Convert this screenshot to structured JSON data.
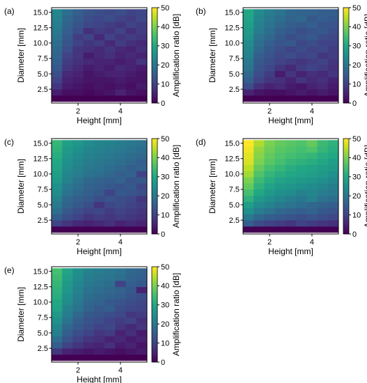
{
  "figure": {
    "colorbar_label": "Amplification ratio [dB]",
    "colorbar_ticks": [
      "0",
      "10",
      "20",
      "30",
      "40",
      "50"
    ],
    "colormap": "viridis"
  },
  "chart_data": [
    {
      "type": "heatmap",
      "panel_label": "(a)",
      "xlabel": "Height [mm]",
      "ylabel": "Diameter [mm]",
      "x_ticks": [
        "2",
        "4"
      ],
      "y_ticks": [
        "2.5",
        "5.0",
        "7.5",
        "10.0",
        "12.5",
        "15.0"
      ],
      "xlim": [
        0.75,
        5.25
      ],
      "ylim": [
        0.25,
        15.75
      ],
      "x": [
        1.0,
        1.5,
        2.0,
        2.5,
        3.0,
        3.5,
        4.0,
        4.5,
        5.0
      ],
      "y": [
        1.0,
        2.0,
        3.0,
        4.0,
        5.0,
        6.0,
        7.0,
        8.0,
        9.0,
        10.0,
        11.0,
        12.0,
        13.0,
        14.0,
        15.0
      ],
      "clim": [
        0,
        50
      ],
      "z": [
        [
          0,
          0,
          0,
          0,
          0,
          0,
          0,
          0,
          0
        ],
        [
          4,
          2,
          2,
          1,
          2,
          3,
          5,
          3,
          2
        ],
        [
          8,
          4,
          3,
          2,
          3,
          2,
          3,
          2,
          4
        ],
        [
          10,
          5,
          4,
          3,
          3,
          3,
          4,
          3,
          3
        ],
        [
          12,
          6,
          5,
          3,
          4,
          5,
          5,
          4,
          3
        ],
        [
          14,
          8,
          6,
          4,
          5,
          4,
          6,
          5,
          4
        ],
        [
          15,
          9,
          7,
          6,
          5,
          5,
          4,
          5,
          8
        ],
        [
          16,
          10,
          8,
          4,
          6,
          7,
          5,
          6,
          5
        ],
        [
          17,
          12,
          8,
          7,
          6,
          8,
          6,
          5,
          7
        ],
        [
          18,
          13,
          10,
          8,
          9,
          6,
          9,
          7,
          6
        ],
        [
          19,
          14,
          9,
          10,
          6,
          10,
          8,
          9,
          8
        ],
        [
          20,
          15,
          12,
          7,
          9,
          8,
          10,
          7,
          9
        ],
        [
          21,
          16,
          13,
          11,
          10,
          9,
          8,
          10,
          9
        ],
        [
          22,
          17,
          14,
          12,
          11,
          12,
          10,
          9,
          11
        ],
        [
          23,
          18,
          15,
          13,
          12,
          11,
          12,
          10,
          11
        ]
      ]
    },
    {
      "type": "heatmap",
      "panel_label": "(b)",
      "xlabel": "Height [mm]",
      "ylabel": "Diameter [mm]",
      "x_ticks": [
        "2",
        "4"
      ],
      "y_ticks": [
        "2.5",
        "5.0",
        "7.5",
        "10.0",
        "12.5",
        "15.0"
      ],
      "xlim": [
        0.75,
        5.25
      ],
      "ylim": [
        0.25,
        15.75
      ],
      "x": [
        1.0,
        1.5,
        2.0,
        2.5,
        3.0,
        3.5,
        4.0,
        4.5,
        5.0
      ],
      "y": [
        1.0,
        2.0,
        3.0,
        4.0,
        5.0,
        6.0,
        7.0,
        8.0,
        9.0,
        10.0,
        11.0,
        12.0,
        13.0,
        14.0,
        15.0
      ],
      "clim": [
        0,
        50
      ],
      "z": [
        [
          0,
          0,
          0,
          0,
          0,
          0,
          0,
          0,
          0
        ],
        [
          5,
          3,
          2,
          2,
          3,
          4,
          3,
          4,
          3
        ],
        [
          12,
          7,
          5,
          6,
          4,
          3,
          5,
          6,
          4
        ],
        [
          15,
          10,
          8,
          7,
          5,
          8,
          6,
          7,
          5
        ],
        [
          17,
          12,
          9,
          4,
          8,
          5,
          7,
          6,
          8
        ],
        [
          19,
          13,
          11,
          8,
          6,
          9,
          10,
          9,
          7
        ],
        [
          20,
          14,
          12,
          10,
          9,
          8,
          9,
          10,
          8
        ],
        [
          22,
          15,
          13,
          11,
          12,
          10,
          11,
          8,
          9
        ],
        [
          23,
          17,
          14,
          12,
          10,
          12,
          10,
          11,
          9
        ],
        [
          24,
          18,
          15,
          13,
          14,
          11,
          12,
          10,
          10
        ],
        [
          26,
          19,
          17,
          14,
          12,
          13,
          14,
          12,
          11
        ],
        [
          27,
          21,
          18,
          15,
          14,
          12,
          13,
          14,
          12
        ],
        [
          28,
          22,
          19,
          17,
          15,
          14,
          15,
          13,
          13
        ],
        [
          29,
          23,
          20,
          18,
          16,
          17,
          14,
          15,
          14
        ],
        [
          30,
          24,
          21,
          19,
          17,
          16,
          16,
          15,
          15
        ]
      ]
    },
    {
      "type": "heatmap",
      "panel_label": "(c)",
      "xlabel": "Height [mm]",
      "ylabel": "Diameter [mm]",
      "x_ticks": [
        "2",
        "4"
      ],
      "y_ticks": [
        "2.5",
        "5.0",
        "7.5",
        "10.0",
        "12.5",
        "15.0"
      ],
      "xlim": [
        0.75,
        5.25
      ],
      "ylim": [
        0.25,
        15.75
      ],
      "x": [
        1.0,
        1.5,
        2.0,
        2.5,
        3.0,
        3.5,
        4.0,
        4.5,
        5.0
      ],
      "y": [
        1.0,
        2.0,
        3.0,
        4.0,
        5.0,
        6.0,
        7.0,
        8.0,
        9.0,
        10.0,
        11.0,
        12.0,
        13.0,
        14.0,
        15.0
      ],
      "clim": [
        0,
        50
      ],
      "z": [
        [
          0,
          0,
          0,
          0,
          0,
          0,
          0,
          0,
          0
        ],
        [
          10,
          8,
          6,
          5,
          6,
          7,
          5,
          6,
          5
        ],
        [
          15,
          12,
          10,
          8,
          9,
          8,
          9,
          8,
          7
        ],
        [
          18,
          14,
          12,
          10,
          11,
          9,
          10,
          9,
          8
        ],
        [
          20,
          16,
          14,
          12,
          8,
          11,
          12,
          10,
          9
        ],
        [
          22,
          17,
          15,
          14,
          12,
          13,
          12,
          11,
          8
        ],
        [
          24,
          19,
          17,
          15,
          14,
          10,
          14,
          13,
          12
        ],
        [
          25,
          20,
          18,
          16,
          15,
          14,
          13,
          14,
          11
        ],
        [
          27,
          22,
          19,
          17,
          16,
          15,
          16,
          13,
          14
        ],
        [
          28,
          23,
          21,
          19,
          18,
          17,
          15,
          16,
          10
        ],
        [
          29,
          24,
          22,
          20,
          19,
          18,
          17,
          15,
          16
        ],
        [
          30,
          25,
          23,
          21,
          20,
          19,
          18,
          17,
          15
        ],
        [
          31,
          26,
          24,
          22,
          21,
          20,
          19,
          18,
          17
        ],
        [
          32,
          27,
          25,
          23,
          22,
          21,
          20,
          19,
          18
        ],
        [
          33,
          28,
          26,
          24,
          23,
          22,
          21,
          20,
          19
        ]
      ]
    },
    {
      "type": "heatmap",
      "panel_label": "(d)",
      "xlabel": "Height [mm]",
      "ylabel": "Diameter [mm]",
      "x_ticks": [
        "2",
        "4"
      ],
      "y_ticks": [
        "2.5",
        "5.0",
        "7.5",
        "10.0",
        "12.5",
        "15.0"
      ],
      "xlim": [
        0.75,
        5.25
      ],
      "ylim": [
        0.25,
        15.75
      ],
      "x": [
        1.0,
        1.5,
        2.0,
        2.5,
        3.0,
        3.5,
        4.0,
        4.5,
        5.0
      ],
      "y": [
        1.0,
        2.0,
        3.0,
        4.0,
        5.0,
        6.0,
        7.0,
        8.0,
        9.0,
        10.0,
        11.0,
        12.0,
        13.0,
        14.0,
        15.0
      ],
      "clim": [
        0,
        50
      ],
      "z": [
        [
          0,
          0,
          0,
          0,
          0,
          0,
          0,
          0,
          0
        ],
        [
          15,
          12,
          10,
          9,
          8,
          10,
          9,
          8,
          7
        ],
        [
          20,
          17,
          15,
          14,
          13,
          12,
          13,
          12,
          11
        ],
        [
          25,
          21,
          19,
          17,
          16,
          15,
          16,
          14,
          13
        ],
        [
          28,
          24,
          22,
          20,
          19,
          18,
          17,
          16,
          15
        ],
        [
          32,
          27,
          25,
          23,
          21,
          20,
          22,
          19,
          18
        ],
        [
          35,
          30,
          27,
          25,
          24,
          22,
          23,
          21,
          20
        ],
        [
          38,
          32,
          29,
          27,
          26,
          25,
          24,
          23,
          21
        ],
        [
          40,
          34,
          31,
          29,
          28,
          27,
          26,
          25,
          23
        ],
        [
          43,
          36,
          33,
          31,
          30,
          29,
          28,
          27,
          25
        ],
        [
          45,
          38,
          35,
          33,
          31,
          30,
          29,
          28,
          27
        ],
        [
          47,
          40,
          37,
          35,
          33,
          32,
          31,
          30,
          28
        ],
        [
          48,
          41,
          38,
          36,
          35,
          34,
          33,
          31,
          30
        ],
        [
          49,
          42,
          39,
          37,
          36,
          35,
          36,
          33,
          31
        ],
        [
          50,
          44,
          40,
          38,
          37,
          36,
          38,
          34,
          32
        ]
      ]
    },
    {
      "type": "heatmap",
      "panel_label": "(e)",
      "xlabel": "Height [mm]",
      "ylabel": "Diameter [mm]",
      "x_ticks": [
        "2",
        "4"
      ],
      "y_ticks": [
        "2.5",
        "5.0",
        "7.5",
        "10.0",
        "12.5",
        "15.0"
      ],
      "xlim": [
        0.75,
        5.25
      ],
      "ylim": [
        0.25,
        15.75
      ],
      "x": [
        1.0,
        1.5,
        2.0,
        2.5,
        3.0,
        3.5,
        4.0,
        4.5,
        5.0
      ],
      "y": [
        1.0,
        2.0,
        3.0,
        4.0,
        5.0,
        6.0,
        7.0,
        8.0,
        9.0,
        10.0,
        11.0,
        12.0,
        13.0,
        14.0,
        15.0
      ],
      "clim": [
        0,
        50
      ],
      "z": [
        [
          0,
          0,
          0,
          0,
          0,
          0,
          0,
          0,
          0
        ],
        [
          8,
          5,
          4,
          3,
          4,
          3,
          2,
          3,
          4
        ],
        [
          15,
          10,
          8,
          6,
          5,
          7,
          4,
          5,
          3
        ],
        [
          18,
          13,
          10,
          8,
          7,
          5,
          6,
          4,
          5
        ],
        [
          21,
          15,
          12,
          10,
          8,
          9,
          5,
          7,
          4
        ],
        [
          23,
          17,
          14,
          12,
          10,
          11,
          8,
          6,
          8
        ],
        [
          25,
          19,
          15,
          13,
          12,
          10,
          9,
          10,
          7
        ],
        [
          27,
          21,
          17,
          14,
          13,
          12,
          11,
          8,
          9
        ],
        [
          29,
          22,
          19,
          16,
          14,
          15,
          12,
          11,
          10
        ],
        [
          30,
          24,
          20,
          17,
          16,
          14,
          13,
          12,
          11
        ],
        [
          31,
          25,
          21,
          18,
          17,
          16,
          15,
          13,
          12
        ],
        [
          32,
          26,
          22,
          19,
          18,
          17,
          16,
          14,
          5
        ],
        [
          33,
          27,
          23,
          20,
          19,
          18,
          10,
          15,
          14
        ],
        [
          34,
          28,
          24,
          21,
          20,
          19,
          18,
          16,
          15
        ],
        [
          35,
          29,
          25,
          22,
          21,
          20,
          19,
          17,
          16
        ]
      ]
    }
  ]
}
